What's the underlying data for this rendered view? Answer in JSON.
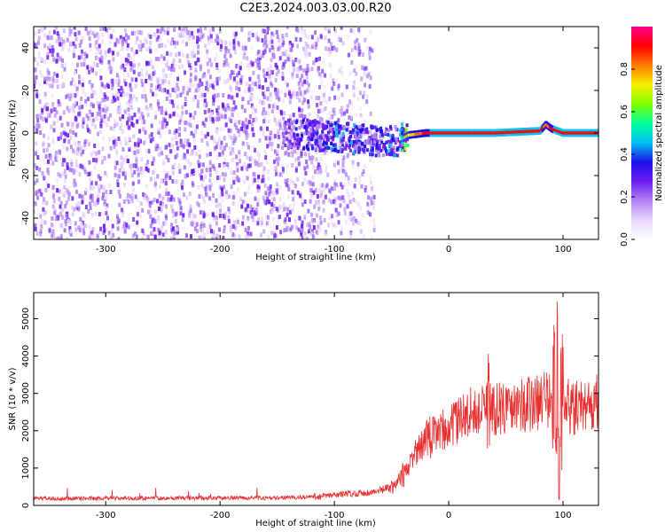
{
  "title": "C2E3.2024.003.03.00.R20",
  "colors": {
    "snr_line": "#e83030",
    "scatter_point": "#6a1cf0",
    "axes": "#000000",
    "colormap": [
      "#ffffff",
      "#e9d6fb",
      "#b184f4",
      "#6a1cf0",
      "#1c10e8",
      "#00c2f2",
      "#00ff9a",
      "#80ff00",
      "#f8f000",
      "#ff7a00",
      "#ff0000",
      "#ff0090"
    ]
  },
  "chart_data": [
    {
      "type": "heatmap",
      "title": "C2E3.2024.003.03.00.R20",
      "xlabel": "Height of straight line (km)",
      "ylabel": "Frequency (Hz)",
      "xlim": [
        -363,
        131
      ],
      "ylim": [
        -50,
        50
      ],
      "xticks": [
        "-300",
        "-200",
        "-100",
        "0",
        "100"
      ],
      "yticks": [
        "-40",
        "-20",
        "0",
        "20",
        "40"
      ],
      "colorbar": {
        "label": "Normalized spectral amplitude",
        "range": [
          0,
          1
        ],
        "ticks": [
          "0.0",
          "0.2",
          "0.4",
          "0.6",
          "0.8"
        ]
      },
      "regions": [
        {
          "description": "broadband scattered noise",
          "x_range": [
            -363,
            -110
          ],
          "frequency_range": [
            -50,
            50
          ],
          "amplitude": 0.05
        },
        {
          "description": "sparse scattered noise",
          "x_range": [
            -110,
            -65
          ],
          "frequency_range": [
            -50,
            50
          ],
          "amplitude": 0.03
        },
        {
          "description": "emerging line",
          "x_range": [
            -145,
            -40
          ],
          "frequency_range": [
            -15,
            10
          ],
          "amplitude": 0.3
        },
        {
          "description": "strong narrow line",
          "x_range": [
            -40,
            131
          ],
          "frequency_range": [
            -2,
            2
          ],
          "amplitude": 0.9
        }
      ],
      "ridge": {
        "x": [
          -145,
          -120,
          -100,
          -80,
          -60,
          -45,
          -35,
          -20,
          0,
          40,
          80,
          85,
          90,
          100,
          131
        ],
        "frequency": [
          0,
          -1,
          -2,
          -3,
          -4,
          -4,
          -1,
          0,
          0,
          0,
          1,
          4,
          2,
          0,
          0
        ],
        "amplitude": [
          0.25,
          0.35,
          0.4,
          0.35,
          0.35,
          0.4,
          0.7,
          0.9,
          0.95,
          0.95,
          0.95,
          0.8,
          0.9,
          0.95,
          0.95
        ]
      }
    },
    {
      "type": "line",
      "xlabel": "Height of straight line (km)",
      "ylabel": "SNR (10 * v/v)",
      "xlim": [
        -363,
        131
      ],
      "ylim": [
        0,
        5700
      ],
      "xticks": [
        "-300",
        "-200",
        "-100",
        "0",
        "100"
      ],
      "yticks": [
        "0",
        "1000",
        "2000",
        "3000",
        "4000",
        "5000"
      ],
      "series": [
        {
          "x": [
            -363,
            -300,
            -200,
            -150,
            -110,
            -90,
            -70,
            -60,
            -50,
            -40,
            -30,
            -20,
            -10,
            0,
            10,
            20,
            30,
            35,
            40,
            50,
            60,
            70,
            80,
            90,
            95,
            100,
            110,
            120,
            131
          ],
          "values": [
            180,
            190,
            200,
            200,
            240,
            310,
            340,
            390,
            500,
            800,
            1400,
            1800,
            2000,
            2100,
            2300,
            2500,
            2500,
            2900,
            2600,
            2600,
            2700,
            2700,
            2800,
            2800,
            1400,
            2700,
            2600,
            2700,
            2750
          ],
          "peaks": {
            "x": [
              -50,
              -40,
              -33,
              -25,
              -15,
              0,
              20,
              35,
              38,
              48,
              65,
              82,
              92,
              96,
              99,
              115,
              128
            ],
            "max": [
              700,
              1150,
              1500,
              1650,
              1850,
              2300,
              2700,
              4150,
              3400,
              3650,
              3400,
              3200,
              4850,
              5650,
              4600,
              3400,
              3300
            ],
            "min": [
              300,
              450,
              800,
              1000,
              1200,
              1600,
              1800,
              1500,
              1900,
              1900,
              2100,
              2200,
              1500,
              150,
              900,
              2200,
              2300
            ]
          }
        }
      ]
    }
  ]
}
